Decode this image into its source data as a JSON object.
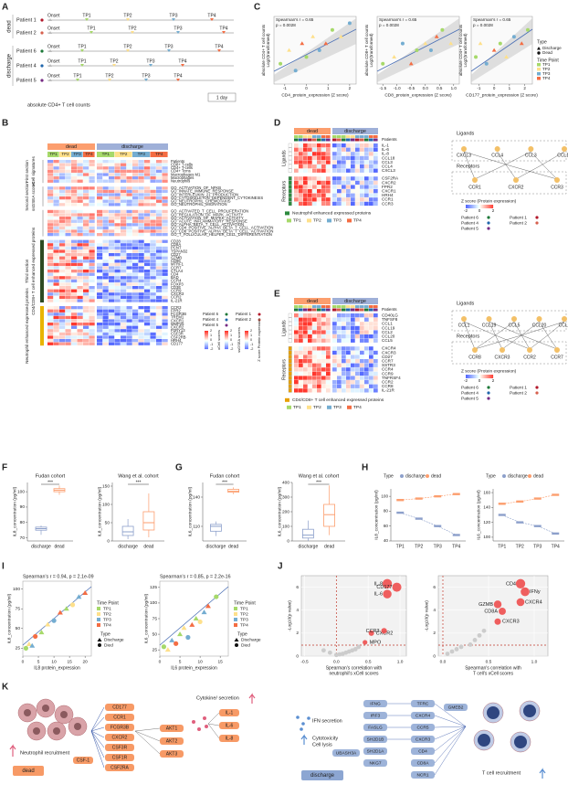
{
  "letters": [
    "A",
    "B",
    "C",
    "D",
    "E",
    "F",
    "G",
    "H",
    "I",
    "J",
    "K"
  ],
  "A": {
    "groups": [
      "dead",
      "discharge"
    ],
    "patients": [
      "Patient 1",
      "Patient 2",
      "Patient 6",
      "Patient 4",
      "Patient 5"
    ],
    "onset": "Onset",
    "tps": [
      "TP1",
      "TP2",
      "TP3",
      "TP4"
    ],
    "caption": "absolute CD4+ T cell counts",
    "scale": "1 day"
  },
  "B": {
    "groups": [
      "dead",
      "discharge"
    ],
    "tps": [
      "TP1",
      "TP2",
      "TP3",
      "TP4"
    ],
    "sections": [
      {
        "label": [
          "First section",
          "xCell signatures"
        ],
        "rows": [
          "Patients",
          "CD8+ T-cells",
          "CD4+ T-cells",
          "CD4+ Tcms",
          "Macrophages M1",
          "Macrophages",
          "Neutrophils"
        ]
      },
      {
        "label": [
          "Second section",
          "ssGSEA scores"
        ],
        "rows": [
          "GO_ACTIVATION_OF_NFKB",
          "GO_INNATE_IMMUNE_RESPONSE",
          "GO_INTERLEUKIN_21_PRODUCTION",
          "GO_CYTOSKELETON_DEPENDENT_CYTOKINESIS",
          "GO_NEUTROPHIL_CHEMOTAXIS",
          "GO_NEUTROPHIL_MIGRATION"
        ]
      },
      {
        "label": [],
        "rows": [
          "GO_ACTIVATED_T_CELL_PROLIFERATION",
          "GO_REGULATION_OF_MAPK_ACTIVITY",
          "GO_ACTIVATION_OF_MAPKK_ACTIVITY",
          "GO_ACUTE_INFLAMMATORY_RESPONSE",
          "GO_ALPHA_BETA_T_CELL_ACTIVATION",
          "GO_CD4_POSITIVE_ALPHA_BETA_T_CELL_ACTIVATION",
          "GO_CD8_POSITIVE_ALPHA_BETA_T_CELL_ACTIVATION",
          "GO_T_FOLLICULAR_HELPER_CELL_DIFFERENTIATION"
        ]
      },
      {
        "label": [
          "Third section",
          "CD4/CD8+ T cell enhanced expressed proteins"
        ],
        "rows": [
          "CD28",
          "CD8A",
          "PCNT",
          "TSPAN32",
          "CD27",
          "GZMB",
          "CD96",
          "MTRF1",
          "CCR7",
          "CTLA4",
          "CD4",
          "BAD",
          "CCR4",
          "FOXP3",
          "CD3E",
          "CCR9",
          "CXCR3",
          "CCR2",
          "IL-21R"
        ]
      },
      {
        "label": [
          "Neutrophil enhanced expressed proteins"
        ],
        "rows": [
          "CCR3",
          "FPR2",
          "FCGR3B",
          "TREM1",
          "CXCR1",
          "MMP25",
          "CXCR2",
          "P2RY13",
          "CSF3R",
          "CSF2RB",
          "HRH4",
          "CD177"
        ]
      }
    ],
    "patients": [
      "Patient 6",
      "Patient 4",
      "Patient 5",
      "Patient 1",
      "Patient 2"
    ],
    "scales": [
      "xCell scores",
      "ssGSEA scores",
      "Z score Protein expression"
    ],
    "scale_ticks": [
      2,
      1,
      0,
      -1,
      -2
    ]
  },
  "C": {
    "stat1": "Spearman's r = 0.65",
    "stat2": "p = 0.0028",
    "plots": [
      {
        "ylabel": [
          "absolute CD4+ T cell counts",
          "Log2(transformed)"
        ],
        "xlabel": "CD4_protein_expression (Z score)",
        "xlim": [
          -1.5,
          2.3
        ],
        "xticks": [
          -1,
          0,
          1,
          2
        ],
        "ylim": [
          0,
          10
        ],
        "x": [
          -1.2,
          -0.8,
          -0.5,
          -0.2,
          0,
          0.3,
          0.6,
          0.9,
          1.2,
          1.6,
          2.0
        ],
        "y": [
          3,
          5,
          2,
          6,
          4,
          7,
          5,
          6,
          8,
          7,
          9
        ]
      },
      {
        "ylabel": [
          "absolute CD8+ T cell counts",
          "Log2(transformed)"
        ],
        "xlabel": "CD8_protein_expression (Z score)",
        "xlim": [
          -1.7,
          1.2
        ],
        "xticks": [
          {
            "value": -1.5,
            "label": "-1.5"
          },
          {
            "value": -1,
            "label": "-1.0"
          },
          {
            "value": -0.5,
            "label": "-0.5"
          },
          {
            "value": 0,
            "label": "0.0"
          },
          {
            "value": 0.5,
            "label": "0.5"
          },
          {
            "value": 1,
            "label": "1.0"
          }
        ],
        "ylim": [
          0,
          10
        ],
        "x": [
          -1.5,
          -1.1,
          -0.8,
          -0.5,
          -0.3,
          0,
          0.2,
          0.4,
          0.6,
          0.9
        ],
        "y": [
          3,
          4,
          6,
          3,
          5,
          6,
          5,
          7,
          8,
          6
        ]
      },
      {
        "ylabel": [
          "absolute CD4+ T cell counts",
          "Log2(transformed)"
        ],
        "xlabel": "CD177_protein_expression (Z score)",
        "xlim": [
          -1.5,
          2.5
        ],
        "xticks": [
          -1,
          0,
          1,
          2
        ],
        "ylim": [
          0,
          10
        ],
        "x": [
          -1.2,
          -0.9,
          -0.5,
          0,
          0.4,
          0.8,
          1.3,
          1.8,
          2.2
        ],
        "y": [
          4,
          6,
          3,
          5,
          6,
          4,
          7,
          6,
          8
        ]
      }
    ],
    "legend_type": "Type",
    "types": [
      "Discharge",
      "Dead"
    ],
    "legend_tp": "Time Point",
    "tps": [
      "TP1",
      "TP2",
      "TP3",
      "TP4"
    ],
    "tp_colors": [
      "#a6d96a",
      "#fee08b",
      "#74add1",
      "#f46d43"
    ]
  },
  "D": {
    "groups": [
      "dead",
      "discharge"
    ],
    "patients_row": "Patients",
    "side": [
      "Ligands",
      "Receptors"
    ],
    "ligands": [
      "IL-1",
      "IL-6",
      "IL-8",
      "CCL18",
      "CCL3",
      "CCL4",
      "CXCL3"
    ],
    "receptors": [
      "CSF2RA",
      "CXCR2",
      "FPR2",
      "CXCR1",
      "HRH4",
      "CCR1",
      "CCR3"
    ],
    "net_ligands": [
      "CXCL3",
      "CCL4",
      "CCL3",
      "CCL18"
    ],
    "net_receptors": [
      "CCR1",
      "CXCR2",
      "CCR3"
    ],
    "legend": "Neutrophil enhanced expressed proteins",
    "zscore": "Z score (Protein expression)",
    "zticks": [
      -2,
      0,
      2
    ]
  },
  "E": {
    "groups": [
      "dead",
      "discharge"
    ],
    "patients_row": "Patients",
    "side": [
      "Ligands",
      "Receptors"
    ],
    "ligands": [
      "CD40LG",
      "TNFSF8",
      "CCL1",
      "CCL19",
      "CCL2",
      "CCL20",
      "CCL5"
    ],
    "receptors": [
      "CXCR4",
      "CXCR3",
      "CD27",
      "CCR7",
      "SSTR3",
      "CCR4",
      "CCR9",
      "TNFRSF4",
      "CCR2",
      "CCR8",
      "IL-21R"
    ],
    "net_ligands": [
      "CCL1",
      "CCL19",
      "CCL5",
      "CCL20",
      "CCL2"
    ],
    "net_receptors": [
      "CCR8",
      "CXCR3",
      "CCR2",
      "CCR7"
    ],
    "legend": "CD4/CD8+ T cell enhanced expressed proteins",
    "zscore": "Z score (Protein expression)",
    "zticks": [
      -2,
      0,
      2
    ]
  },
  "F": {
    "ylabel": "IL8_concentration (pg/ml)",
    "categories": [
      "discharge",
      "dead"
    ],
    "sig": "***",
    "plots": [
      {
        "title": "Fudan cohort",
        "ylim": [
          68,
          106
        ],
        "yticks": [
          70,
          80,
          90,
          100
        ],
        "boxes": [
          {
            "min": 72,
            "q1": 75,
            "median": 76,
            "q3": 77,
            "max": 78
          },
          {
            "min": 98,
            "q1": 100,
            "median": 101,
            "q3": 102,
            "max": 104
          }
        ]
      },
      {
        "title": "Wang et al. cohort",
        "ylim": [
          0,
          160
        ],
        "yticks": [
          0,
          50,
          100,
          150
        ],
        "boxes": [
          {
            "min": 5,
            "q1": 15,
            "median": 25,
            "q3": 40,
            "max": 60
          },
          {
            "min": 10,
            "q1": 30,
            "median": 50,
            "q3": 80,
            "max": 130
          }
        ]
      }
    ]
  },
  "G": {
    "ylabel": "IL6_concentration (pg/ml)",
    "categories": [
      "discharge",
      "dead"
    ],
    "sig": "***",
    "plots": [
      {
        "title": "Fudan cohort",
        "ylim": [
          95,
          155
        ],
        "yticks": [
          110,
          140
        ],
        "boxes": [
          {
            "min": 100,
            "q1": 105,
            "median": 110,
            "q3": 112,
            "max": 115
          },
          {
            "min": 143,
            "q1": 145,
            "median": 146,
            "q3": 148,
            "max": 150
          }
        ]
      },
      {
        "title": "Wang et al. cohort",
        "ylim": [
          0,
          400
        ],
        "yticks": [
          0,
          100,
          200,
          300,
          400
        ],
        "boxes": [
          {
            "min": 0,
            "q1": 20,
            "median": 40,
            "q3": 80,
            "max": 140
          },
          {
            "min": 40,
            "q1": 100,
            "median": 180,
            "q3": 250,
            "max": 380
          }
        ]
      }
    ]
  },
  "H": {
    "legend_type": "Type",
    "types": [
      "discharge",
      "dead"
    ],
    "colors": [
      "#8da0cb",
      "#fc9e6e"
    ],
    "categories": [
      "TP1",
      "TP2",
      "TP3",
      "TP4"
    ],
    "plots": [
      {
        "ylabel": "IL8_concentration (pg/ml)",
        "ylim": [
          40,
          110
        ],
        "yticks": [
          40,
          60,
          80,
          100
        ],
        "series": [
          [
            78,
            70,
            60,
            48
          ],
          [
            95,
            97,
            100,
            103
          ]
        ]
      },
      {
        "ylabel": "IL6_concentration (pg/ml)",
        "ylim": [
          95,
          165
        ],
        "yticks": [
          100,
          120,
          140,
          160
        ],
        "series": [
          [
            130,
            120,
            115,
            105
          ],
          [
            145,
            148,
            152,
            157
          ]
        ]
      }
    ]
  },
  "I": {
    "legend_tp": "Time Point",
    "tps": [
      "TP1",
      "TP2",
      "TP3",
      "TP4"
    ],
    "legend_type": "Type",
    "types": [
      "Discharge",
      "Died"
    ],
    "plots": [
      {
        "stat": "Spearman's r = 0.94, p = 2.1e-09",
        "ylabel": "IL8_concentration (pg/ml)",
        "xlabel": "IL8 protein_expression",
        "xlim": [
          0,
          22
        ],
        "xticks": [
          0,
          5,
          10,
          15,
          20
        ],
        "ylim": [
          15,
          110
        ],
        "yticks": [
          25,
          50,
          75,
          100
        ],
        "x": [
          1,
          2,
          3,
          4,
          6,
          8,
          10,
          12,
          14,
          16,
          18,
          20
        ],
        "y": [
          25,
          30,
          28,
          40,
          45,
          55,
          60,
          70,
          75,
          80,
          90,
          95
        ]
      },
      {
        "stat": "Spearman's r = 0.85, p = 2.2e-16",
        "ylabel": "IL6_concentration (pg/ml)",
        "xlabel": "IL6 protein_expression",
        "xlim": [
          0,
          17
        ],
        "xticks": [
          0,
          5,
          10,
          15
        ],
        "ylim": [
          15,
          135
        ],
        "yticks": [
          25,
          50,
          75,
          100,
          125
        ],
        "x": [
          1,
          2,
          3,
          4,
          5,
          6,
          7,
          8,
          9,
          10,
          11,
          12,
          14
        ],
        "y": [
          30,
          25,
          40,
          35,
          50,
          60,
          45,
          65,
          75,
          70,
          85,
          95,
          110
        ]
      }
    ]
  },
  "J": {
    "ylabel": "-Log10(p value)",
    "plots": [
      {
        "xlabel": [
          "Spearman's correlation with",
          "neutrophil's xCell scores"
        ],
        "xlim": [
          -0.55,
          1.1
        ],
        "xticks": [
          {
            "value": -0.5,
            "label": "-0.5"
          },
          {
            "value": 0,
            "label": "0.0"
          },
          {
            "value": 0.5,
            "label": "0.5"
          },
          {
            "value": 1,
            "label": "1.0"
          }
        ],
        "ylim": [
          0,
          7
        ],
        "yticks": [
          0,
          2,
          4,
          6
        ],
        "labels": [
          "IL-8",
          "CD177",
          "IL-6",
          "CXCR2",
          "CCR3",
          "MPO"
        ],
        "x": [
          0.8,
          0.95,
          0.8,
          0.55,
          0.75,
          0.45
        ],
        "y": [
          6.3,
          6.0,
          5.4,
          2.0,
          2.2,
          1.2
        ],
        "other_x": [
          -0.2,
          -0.1,
          0,
          0.05,
          0.1,
          0.15,
          0.2,
          0.25,
          0.3,
          0.35
        ],
        "other_y": [
          0.5,
          0.3,
          0.1,
          0.15,
          0.2,
          0.3,
          0.4,
          0.5,
          0.6,
          0.8
        ]
      },
      {
        "xlabel": [
          "Spearman's correlation with",
          "T cell's xCell scores"
        ],
        "xlim": [
          -0.05,
          1.15
        ],
        "xticks": [
          {
            "value": 0,
            "label": "0.0"
          },
          {
            "value": 0.5,
            "label": "0.5"
          },
          {
            "value": 1,
            "label": "1.0"
          }
        ],
        "ylim": [
          0,
          7
        ],
        "yticks": [
          0,
          2,
          4,
          6
        ],
        "labels": [
          "CD4",
          "IFNy",
          "GZMB",
          "CXCR4",
          "CD8A",
          "CXCR3"
        ],
        "x": [
          0.85,
          0.9,
          0.6,
          0.85,
          0.65,
          0.6
        ],
        "y": [
          6.3,
          5.6,
          4.5,
          4.7,
          3.9,
          3.0
        ],
        "other_x": [
          0.05,
          0.1,
          0.15,
          0.2,
          0.3,
          0.35,
          0.4,
          0.45
        ],
        "other_y": [
          0.2,
          0.4,
          0.6,
          0.8,
          1.0,
          1.4,
          1.8,
          2.2
        ]
      }
    ]
  },
  "K": {
    "recruit": "Neutrophil recruitment",
    "dead": "dead",
    "discharge": "discharge",
    "receptors": [
      "CD177",
      "CCR1",
      "FCGR3B",
      "CXCR2",
      "CSF3R",
      "CSF1R",
      "CSF2RA"
    ],
    "csf": "CSF-1",
    "akt": [
      "AKT1",
      "AKT2",
      "AKT3"
    ],
    "secretion": "Cytokine/ secretion",
    "cytokines": [
      "IL-1",
      "IL-6",
      "IL-8"
    ],
    "ifn": "IFN secretion",
    "cytotox": [
      "Cytotoxicity",
      "Cell lysis"
    ],
    "genes_left": [
      "IFNG",
      "IRF3",
      "FASLG",
      "SH2D1B",
      "SH2D1A",
      "NKG7"
    ],
    "ubash": "UBASH3A",
    "genes_right": [
      "TFRC",
      "CXCR4",
      "CCR5",
      "CXCR3",
      "CD4",
      "CD8A",
      "NCR1"
    ],
    "gmeb": "GMEB2",
    "tcell": "T cell recruitment"
  }
}
